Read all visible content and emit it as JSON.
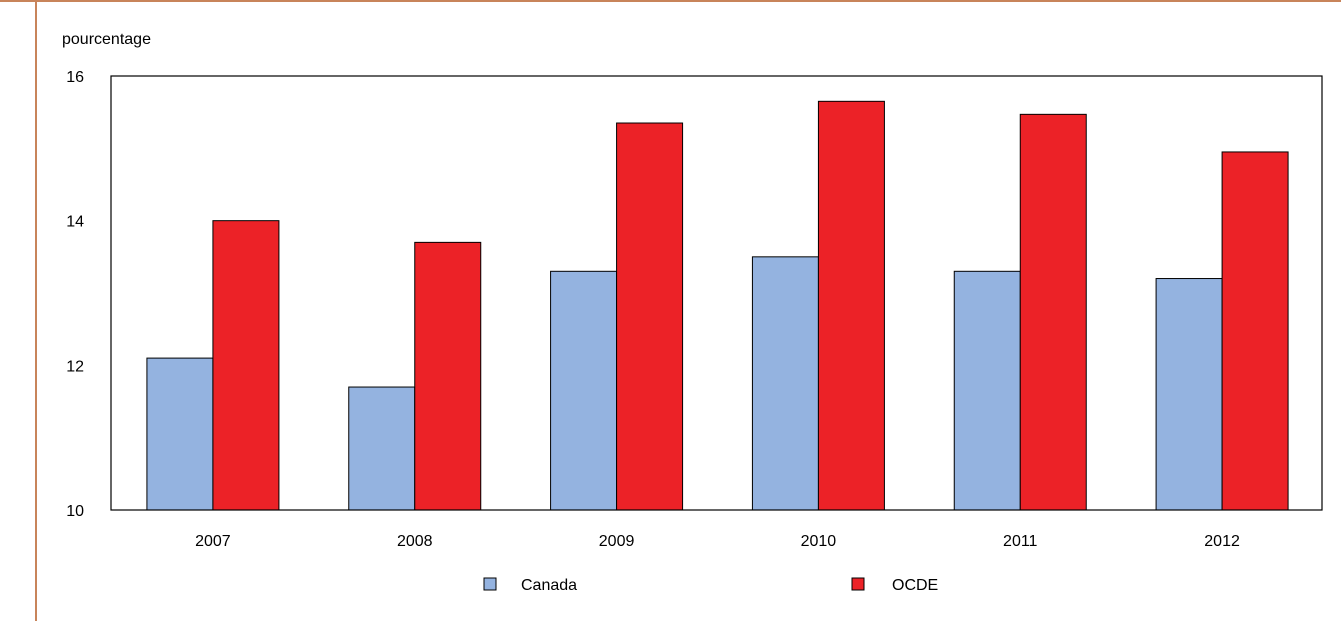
{
  "chart_data": {
    "type": "bar",
    "unit_label": "pourcentage",
    "categories": [
      "2007",
      "2008",
      "2009",
      "2010",
      "2011",
      "2012"
    ],
    "series": [
      {
        "name": "Canada",
        "values": [
          12.1,
          11.7,
          13.3,
          13.5,
          13.3,
          13.2
        ],
        "color": "#94b3e0"
      },
      {
        "name": "OCDE",
        "values": [
          14.0,
          13.7,
          15.35,
          15.65,
          15.47,
          14.95
        ],
        "color": "#ec2227"
      }
    ],
    "ylim": [
      10,
      16
    ],
    "yticks": [
      "10",
      "12",
      "14",
      "16"
    ],
    "grid": false,
    "legend_position": "bottom",
    "frame_color": "#c8845a"
  }
}
